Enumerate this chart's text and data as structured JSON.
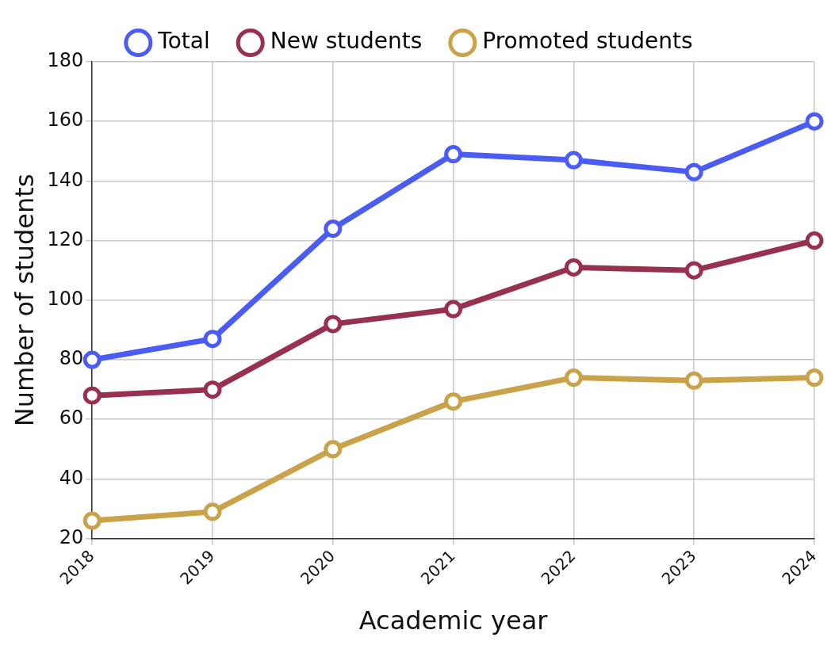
{
  "chart_data": {
    "type": "line",
    "xlabel": "Academic year",
    "ylabel": "Number of students",
    "categories": [
      "2018",
      "2019",
      "2020",
      "2021",
      "2022",
      "2023",
      "2024"
    ],
    "series": [
      {
        "name": "Total",
        "color": "#4b5cf5",
        "values": [
          80,
          87,
          124,
          149,
          147,
          143,
          160
        ]
      },
      {
        "name": "New students",
        "color": "#98304f",
        "values": [
          68,
          70,
          92,
          97,
          111,
          110,
          120
        ]
      },
      {
        "name": "Promoted students",
        "color": "#c9a24a",
        "values": [
          26,
          29,
          50,
          66,
          74,
          73,
          74
        ]
      }
    ],
    "ylim": [
      20,
      180
    ],
    "yticks": [
      20,
      40,
      60,
      80,
      100,
      120,
      140,
      160,
      180
    ],
    "grid": true,
    "legend": "top",
    "marker": "circle",
    "line_style": "solid"
  }
}
